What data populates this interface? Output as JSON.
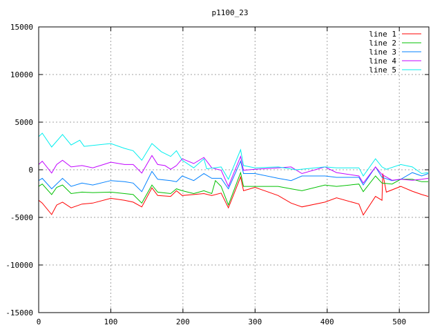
{
  "chart_data": {
    "type": "line",
    "title": "p1100_23",
    "xlabel": "",
    "ylabel": "",
    "xlim": [
      0,
      541
    ],
    "ylim": [
      -15000,
      15000
    ],
    "xticks": [
      0,
      100,
      200,
      300,
      400,
      500
    ],
    "yticks": [
      -15000,
      -10000,
      -5000,
      0,
      5000,
      10000,
      15000
    ],
    "grid": true,
    "legend_position": "top-right",
    "series": [
      {
        "name": "line 1",
        "color": "#ff0000",
        "points": [
          [
            0,
            -3200
          ],
          [
            5,
            -3500
          ],
          [
            18,
            -4700
          ],
          [
            25,
            -3700
          ],
          [
            33,
            -3400
          ],
          [
            45,
            -4000
          ],
          [
            60,
            -3600
          ],
          [
            75,
            -3500
          ],
          [
            100,
            -3000
          ],
          [
            119,
            -3200
          ],
          [
            131,
            -3400
          ],
          [
            143,
            -3900
          ],
          [
            157,
            -1900
          ],
          [
            165,
            -2700
          ],
          [
            183,
            -2800
          ],
          [
            191,
            -2200
          ],
          [
            199,
            -2700
          ],
          [
            215,
            -2600
          ],
          [
            229,
            -2500
          ],
          [
            240,
            -2700
          ],
          [
            253,
            -2450
          ],
          [
            263,
            -4000
          ],
          [
            280,
            -750
          ],
          [
            284,
            -2200
          ],
          [
            300,
            -1850
          ],
          [
            332,
            -2700
          ],
          [
            350,
            -3500
          ],
          [
            365,
            -3900
          ],
          [
            397,
            -3400
          ],
          [
            413,
            -2950
          ],
          [
            444,
            -3600
          ],
          [
            450,
            -4750
          ],
          [
            467,
            -2800
          ],
          [
            476,
            -3200
          ],
          [
            477,
            -400
          ],
          [
            482,
            -2350
          ],
          [
            502,
            -1750
          ],
          [
            518,
            -2250
          ],
          [
            531,
            -2600
          ],
          [
            540,
            -2800
          ]
        ]
      },
      {
        "name": "line 2",
        "color": "#00c000",
        "points": [
          [
            0,
            -1750
          ],
          [
            5,
            -1500
          ],
          [
            18,
            -2600
          ],
          [
            25,
            -1850
          ],
          [
            33,
            -1600
          ],
          [
            45,
            -2500
          ],
          [
            60,
            -2350
          ],
          [
            75,
            -2400
          ],
          [
            100,
            -2350
          ],
          [
            119,
            -2500
          ],
          [
            131,
            -2600
          ],
          [
            143,
            -3500
          ],
          [
            157,
            -1600
          ],
          [
            165,
            -2350
          ],
          [
            183,
            -2500
          ],
          [
            191,
            -2000
          ],
          [
            199,
            -2200
          ],
          [
            215,
            -2500
          ],
          [
            229,
            -2200
          ],
          [
            240,
            -2500
          ],
          [
            245,
            -1140
          ],
          [
            253,
            -1750
          ],
          [
            263,
            -3700
          ],
          [
            280,
            -300
          ],
          [
            284,
            -1750
          ],
          [
            300,
            -1750
          ],
          [
            332,
            -1750
          ],
          [
            350,
            -2000
          ],
          [
            365,
            -2200
          ],
          [
            397,
            -1600
          ],
          [
            413,
            -1750
          ],
          [
            444,
            -1500
          ],
          [
            450,
            -2300
          ],
          [
            467,
            -650
          ],
          [
            476,
            -1400
          ],
          [
            490,
            -1500
          ],
          [
            502,
            -1000
          ],
          [
            518,
            -1000
          ],
          [
            531,
            -1250
          ],
          [
            540,
            -1250
          ]
        ]
      },
      {
        "name": "line 3",
        "color": "#0080ff",
        "points": [
          [
            0,
            -1140
          ],
          [
            5,
            -900
          ],
          [
            18,
            -2000
          ],
          [
            33,
            -900
          ],
          [
            45,
            -1750
          ],
          [
            60,
            -1400
          ],
          [
            75,
            -1600
          ],
          [
            100,
            -1140
          ],
          [
            119,
            -1250
          ],
          [
            131,
            -1400
          ],
          [
            143,
            -2300
          ],
          [
            157,
            -170
          ],
          [
            165,
            -1000
          ],
          [
            183,
            -1140
          ],
          [
            191,
            -1250
          ],
          [
            199,
            -650
          ],
          [
            215,
            -1140
          ],
          [
            229,
            -400
          ],
          [
            240,
            -900
          ],
          [
            253,
            -900
          ],
          [
            263,
            -2000
          ],
          [
            280,
            900
          ],
          [
            284,
            -400
          ],
          [
            300,
            -400
          ],
          [
            332,
            -900
          ],
          [
            350,
            -1140
          ],
          [
            365,
            -650
          ],
          [
            397,
            -650
          ],
          [
            413,
            -800
          ],
          [
            444,
            -800
          ],
          [
            450,
            -1600
          ],
          [
            467,
            300
          ],
          [
            476,
            -800
          ],
          [
            490,
            -1140
          ],
          [
            502,
            -1000
          ],
          [
            518,
            -300
          ],
          [
            531,
            -650
          ],
          [
            540,
            -400
          ]
        ]
      },
      {
        "name": "line 4",
        "color": "#c000ff",
        "points": [
          [
            0,
            550
          ],
          [
            5,
            900
          ],
          [
            18,
            -350
          ],
          [
            25,
            550
          ],
          [
            33,
            1000
          ],
          [
            45,
            300
          ],
          [
            60,
            440
          ],
          [
            75,
            200
          ],
          [
            90,
            550
          ],
          [
            100,
            800
          ],
          [
            119,
            550
          ],
          [
            131,
            550
          ],
          [
            143,
            -350
          ],
          [
            157,
            1500
          ],
          [
            165,
            550
          ],
          [
            175,
            440
          ],
          [
            183,
            50
          ],
          [
            191,
            440
          ],
          [
            199,
            1150
          ],
          [
            215,
            650
          ],
          [
            229,
            1300
          ],
          [
            240,
            200
          ],
          [
            253,
            -50
          ],
          [
            263,
            -1750
          ],
          [
            280,
            1400
          ],
          [
            284,
            -50
          ],
          [
            300,
            50
          ],
          [
            332,
            200
          ],
          [
            350,
            300
          ],
          [
            365,
            -400
          ],
          [
            397,
            300
          ],
          [
            413,
            -300
          ],
          [
            444,
            -650
          ],
          [
            450,
            -1400
          ],
          [
            467,
            300
          ],
          [
            476,
            -500
          ],
          [
            490,
            -1100
          ],
          [
            502,
            -1000
          ],
          [
            518,
            -1100
          ],
          [
            531,
            -1000
          ],
          [
            540,
            -900
          ]
        ]
      },
      {
        "name": "line 5",
        "color": "#00eeee",
        "points": [
          [
            0,
            3480
          ],
          [
            5,
            3840
          ],
          [
            18,
            2390
          ],
          [
            33,
            3700
          ],
          [
            45,
            2600
          ],
          [
            57,
            3100
          ],
          [
            63,
            2460
          ],
          [
            100,
            2750
          ],
          [
            119,
            2250
          ],
          [
            131,
            2000
          ],
          [
            143,
            1000
          ],
          [
            157,
            2750
          ],
          [
            170,
            1900
          ],
          [
            183,
            1400
          ],
          [
            191,
            2000
          ],
          [
            199,
            1000
          ],
          [
            215,
            200
          ],
          [
            229,
            1150
          ],
          [
            233,
            100
          ],
          [
            253,
            300
          ],
          [
            263,
            -1000
          ],
          [
            280,
            2100
          ],
          [
            284,
            440
          ],
          [
            300,
            200
          ],
          [
            332,
            300
          ],
          [
            357,
            0
          ],
          [
            397,
            300
          ],
          [
            413,
            200
          ],
          [
            444,
            200
          ],
          [
            450,
            -650
          ],
          [
            467,
            1150
          ],
          [
            476,
            300
          ],
          [
            482,
            50
          ],
          [
            502,
            550
          ],
          [
            518,
            300
          ],
          [
            531,
            -400
          ],
          [
            540,
            -300
          ]
        ]
      }
    ]
  }
}
